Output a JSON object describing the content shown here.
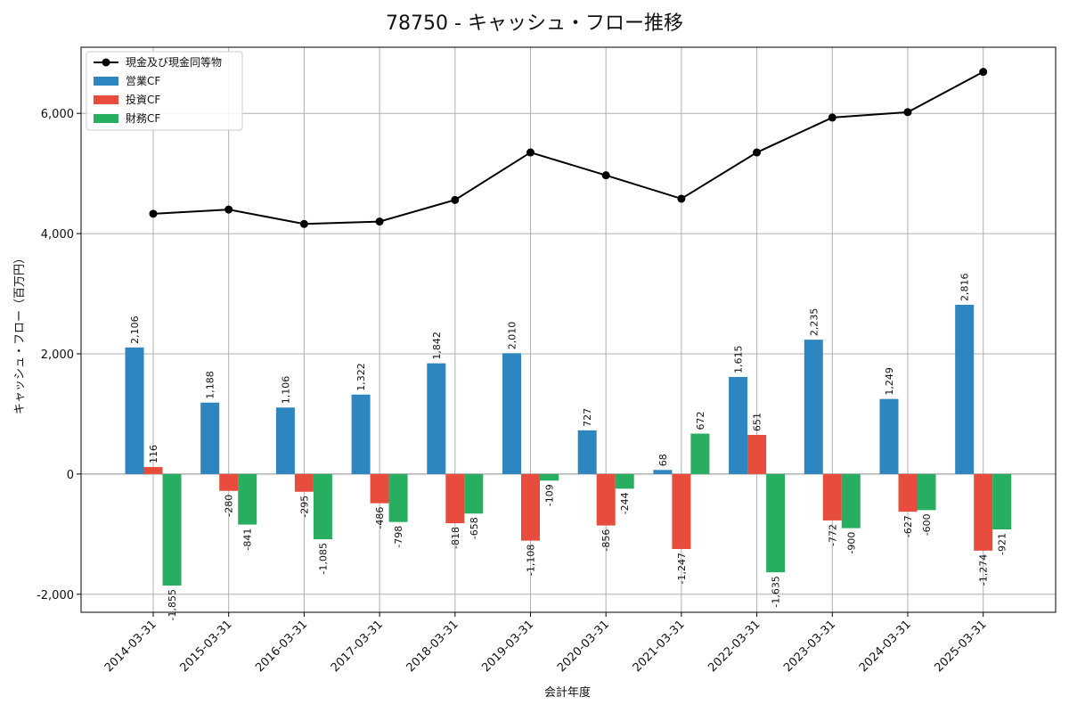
{
  "chart_data": {
    "type": "bar",
    "title": "78750 - キャッシュ・フロー推移",
    "xlabel": "会計年度",
    "ylabel": "キャッシュ・フロー（百万円）",
    "categories": [
      "2014-03-31",
      "2015-03-31",
      "2016-03-31",
      "2017-03-31",
      "2018-03-31",
      "2019-03-31",
      "2020-03-31",
      "2021-03-31",
      "2022-03-31",
      "2023-03-31",
      "2024-03-31",
      "2025-03-31"
    ],
    "ylim": [
      -2300,
      7100
    ],
    "yticks": [
      -2000,
      0,
      2000,
      4000,
      6000
    ],
    "ytick_labels": [
      "-2,000",
      "0",
      "2,000",
      "4,000",
      "6,000"
    ],
    "grid": true,
    "legend_position": "top-left",
    "series": [
      {
        "name": "営業CF",
        "kind": "bar",
        "color": "#2e86c1",
        "values": [
          2106,
          1188,
          1106,
          1322,
          1842,
          2010,
          727,
          68,
          1615,
          2235,
          1249,
          2816
        ],
        "labels": [
          "2,106",
          "1,188",
          "1,106",
          "1,322",
          "1,842",
          "2,010",
          "727",
          "68",
          "1,615",
          "2,235",
          "1,249",
          "2,816"
        ]
      },
      {
        "name": "投資CF",
        "kind": "bar",
        "color": "#e74c3c",
        "values": [
          116,
          -280,
          -295,
          -486,
          -818,
          -1108,
          -856,
          -1247,
          651,
          -772,
          -627,
          -1274
        ],
        "labels": [
          "116",
          "-280",
          "-295",
          "-486",
          "-818",
          "-1,108",
          "-856",
          "-1,247",
          "651",
          "-772",
          "-627",
          "-1,274"
        ]
      },
      {
        "name": "財務CF",
        "kind": "bar",
        "color": "#27ae60",
        "values": [
          -1855,
          -841,
          -1085,
          -798,
          -658,
          -109,
          -244,
          672,
          -1635,
          -900,
          -600,
          -921
        ],
        "labels": [
          "-1,855",
          "-841",
          "-1,085",
          "-798",
          "-658",
          "-109",
          "-244",
          "672",
          "-1,635",
          "-900",
          "-600",
          "-921"
        ]
      },
      {
        "name": "現金及び現金同等物",
        "kind": "line",
        "color": "#000000",
        "values": [
          4330,
          4400,
          4160,
          4200,
          4560,
          5350,
          4970,
          4580,
          5350,
          5930,
          6020,
          6690
        ]
      }
    ]
  }
}
